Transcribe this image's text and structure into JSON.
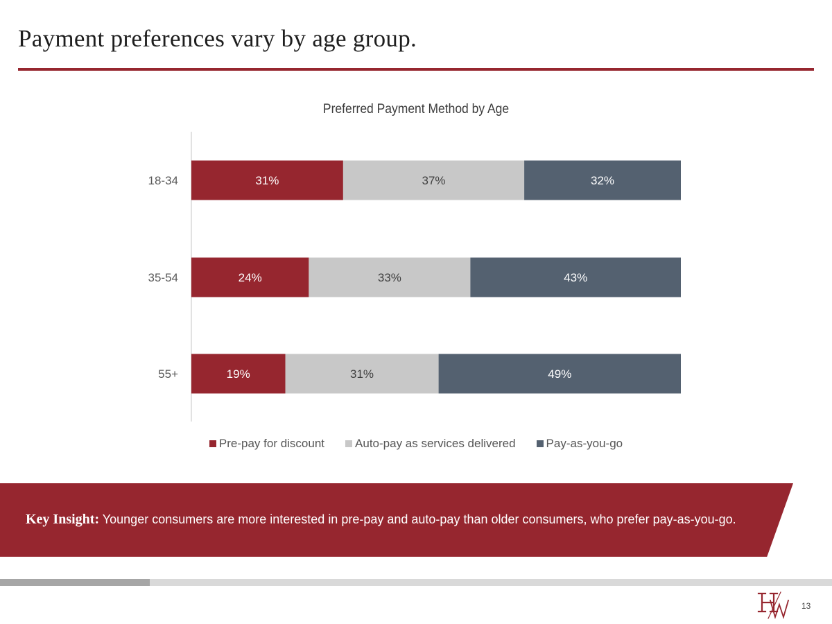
{
  "slide": {
    "title": "Payment preferences vary by age group.",
    "page_number": "13"
  },
  "insight": {
    "label": "Key Insight:",
    "text": " Younger consumers are more interested in pre-pay and auto-pay than older consumers, who prefer pay-as-you-go."
  },
  "logo": {
    "name": "hw-monogram-logo",
    "color": "#96262f"
  },
  "chart_data": {
    "type": "bar",
    "orientation": "horizontal",
    "stacked": "percent",
    "title": "Preferred Payment Method by Age",
    "categories": [
      "18-34",
      "35-54",
      "55+"
    ],
    "series": [
      {
        "name": "Pre-pay for discount",
        "values": [
          31,
          24,
          19
        ],
        "labels": [
          "31%",
          "24%",
          "19%"
        ],
        "color": "#96262f",
        "label_color": "#ffffff"
      },
      {
        "name": "Auto-pay as services delivered",
        "values": [
          37,
          33,
          31
        ],
        "labels": [
          "37%",
          "33%",
          "31%"
        ],
        "color": "#c8c8c8",
        "label_color": "#404040"
      },
      {
        "name": "Pay-as-you-go",
        "values": [
          32,
          43,
          49
        ],
        "labels": [
          "32%",
          "43%",
          "49%"
        ],
        "color": "#546170",
        "label_color": "#ffffff"
      }
    ],
    "xlim": [
      0,
      100
    ],
    "grid": false,
    "legend_position": "bottom"
  }
}
